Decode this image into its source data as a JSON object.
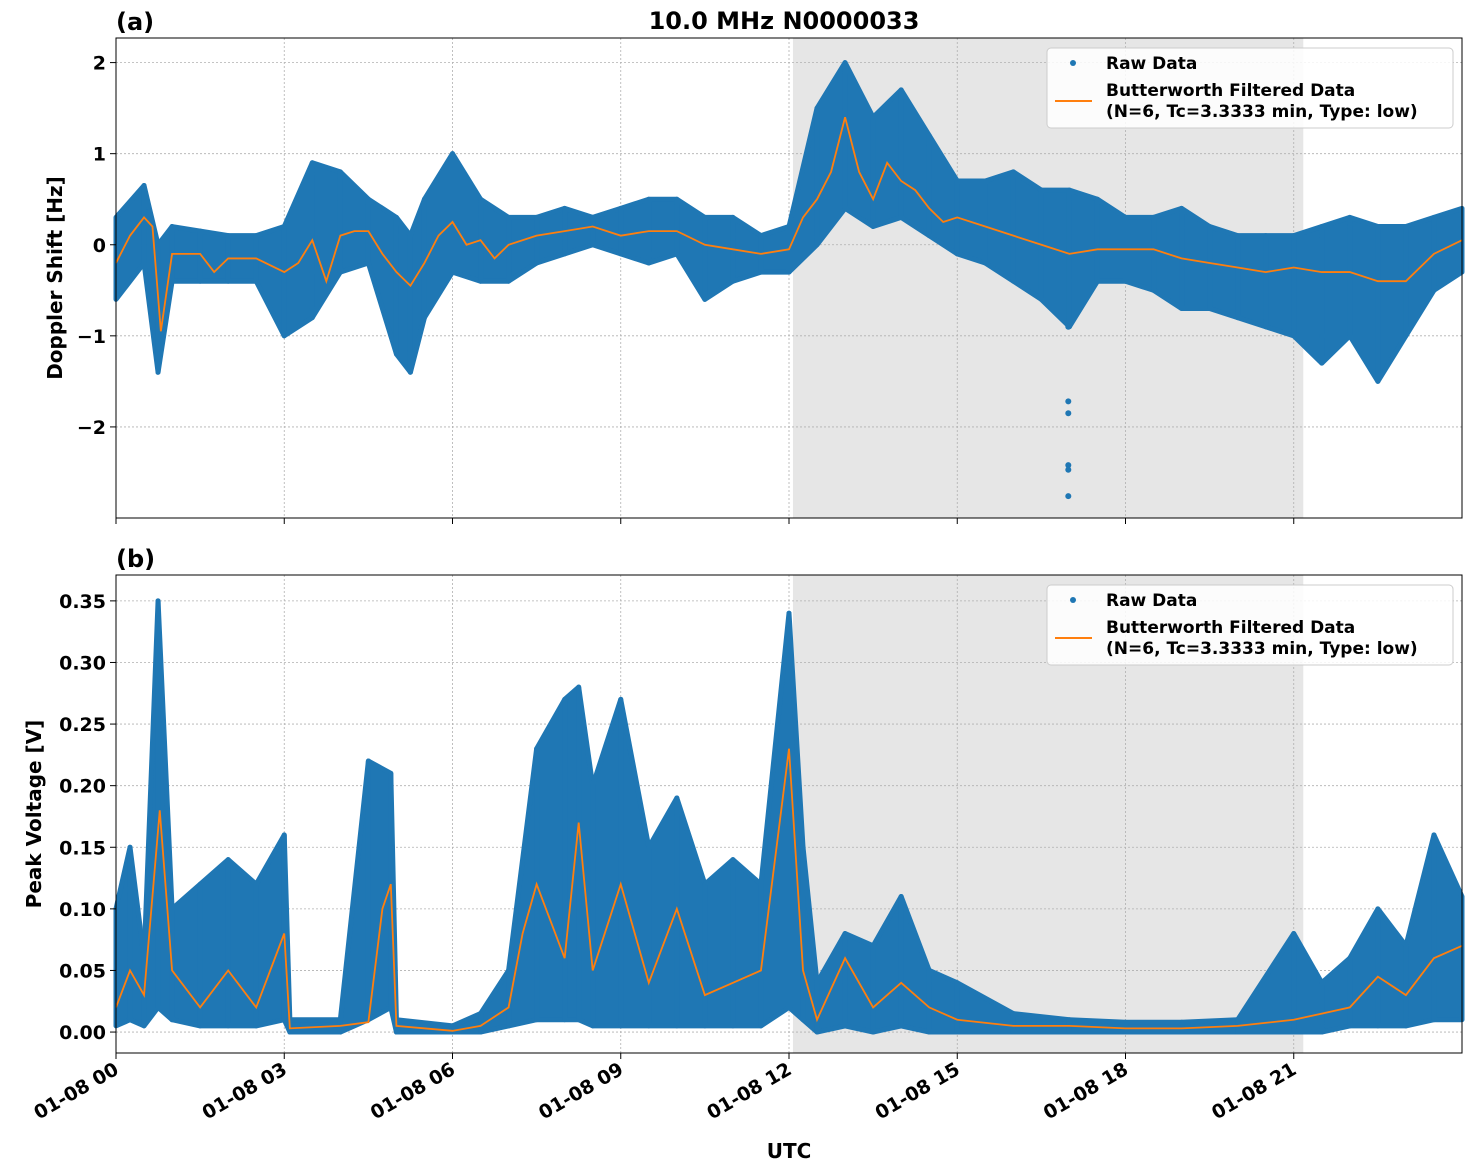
{
  "title": "10.0 MHz N0000033",
  "colors": {
    "raw": "#1f77b4",
    "filtered": "#ff7f0e",
    "shade": "#e6e6e6",
    "grid": "#b0b0b0"
  },
  "chart_data": [
    {
      "type": "scatter",
      "panel_label": "(a)",
      "ylabel": "Doppler Shift [Hz]",
      "xlabel": "",
      "ylim": [
        -3.0,
        2.27
      ],
      "xlim_hours": [
        0,
        24
      ],
      "yticks": [
        2,
        1,
        0,
        -1,
        -2
      ],
      "ytick_labels": [
        "2",
        "1",
        "0",
        "−1",
        "−2"
      ],
      "grid": true,
      "legend_position": "top-right",
      "shaded_span_hours": [
        12.07,
        21.17
      ],
      "legend": {
        "raw": "Raw Data",
        "filtered_line1": "Butterworth Filtered Data",
        "filtered_line2": "(N=6, Tc=3.3333 min, Type: low)"
      },
      "raw_envelope": [
        [
          0,
          -0.6,
          0.3
        ],
        [
          0.5,
          -0.2,
          0.65
        ],
        [
          0.75,
          -1.4,
          0.0
        ],
        [
          1,
          -0.4,
          0.2
        ],
        [
          1.5,
          -0.4,
          0.15
        ],
        [
          2,
          -0.4,
          0.1
        ],
        [
          2.5,
          -0.4,
          0.1
        ],
        [
          3,
          -1.0,
          0.2
        ],
        [
          3.5,
          -0.8,
          0.9
        ],
        [
          4,
          -0.3,
          0.8
        ],
        [
          4.5,
          -0.2,
          0.5
        ],
        [
          5,
          -1.2,
          0.3
        ],
        [
          5.25,
          -1.4,
          0.1
        ],
        [
          5.5,
          -0.8,
          0.5
        ],
        [
          6,
          -0.3,
          1.0
        ],
        [
          6.5,
          -0.4,
          0.5
        ],
        [
          7,
          -0.4,
          0.3
        ],
        [
          7.5,
          -0.2,
          0.3
        ],
        [
          8,
          -0.1,
          0.4
        ],
        [
          8.5,
          0.0,
          0.3
        ],
        [
          9,
          -0.1,
          0.4
        ],
        [
          9.5,
          -0.2,
          0.5
        ],
        [
          10,
          -0.1,
          0.5
        ],
        [
          10.5,
          -0.6,
          0.3
        ],
        [
          11,
          -0.4,
          0.3
        ],
        [
          11.5,
          -0.3,
          0.1
        ],
        [
          12,
          -0.3,
          0.2
        ],
        [
          12.5,
          0.0,
          1.5
        ],
        [
          13,
          0.4,
          2.0
        ],
        [
          13.5,
          0.2,
          1.4
        ],
        [
          14,
          0.3,
          1.7
        ],
        [
          14.5,
          0.1,
          1.2
        ],
        [
          15,
          -0.1,
          0.7
        ],
        [
          15.5,
          -0.2,
          0.7
        ],
        [
          16,
          -0.4,
          0.8
        ],
        [
          16.5,
          -0.6,
          0.6
        ],
        [
          17,
          -0.9,
          0.6
        ],
        [
          17.5,
          -0.4,
          0.5
        ],
        [
          18,
          -0.4,
          0.3
        ],
        [
          18.5,
          -0.5,
          0.3
        ],
        [
          19,
          -0.7,
          0.4
        ],
        [
          19.5,
          -0.7,
          0.2
        ],
        [
          20,
          -0.8,
          0.1
        ],
        [
          20.5,
          -0.9,
          0.1
        ],
        [
          21,
          -1.0,
          0.1
        ],
        [
          21.5,
          -1.3,
          0.2
        ],
        [
          22,
          -1.0,
          0.3
        ],
        [
          22.5,
          -1.5,
          0.2
        ],
        [
          23,
          -1.0,
          0.2
        ],
        [
          23.5,
          -0.5,
          0.3
        ],
        [
          24,
          -0.3,
          0.4
        ]
      ],
      "raw_outliers": [
        [
          16.98,
          -1.72
        ],
        [
          16.98,
          -1.85
        ],
        [
          16.98,
          -2.42
        ],
        [
          16.98,
          -2.47
        ],
        [
          16.98,
          -2.76
        ],
        [
          16.98,
          -0.9
        ]
      ],
      "filtered": [
        [
          0,
          -0.2
        ],
        [
          0.25,
          0.1
        ],
        [
          0.5,
          0.3
        ],
        [
          0.65,
          0.2
        ],
        [
          0.8,
          -0.95
        ],
        [
          1,
          -0.1
        ],
        [
          1.5,
          -0.1
        ],
        [
          1.75,
          -0.3
        ],
        [
          2,
          -0.15
        ],
        [
          2.5,
          -0.15
        ],
        [
          3,
          -0.3
        ],
        [
          3.25,
          -0.2
        ],
        [
          3.5,
          0.05
        ],
        [
          3.75,
          -0.4
        ],
        [
          4,
          0.1
        ],
        [
          4.25,
          0.15
        ],
        [
          4.5,
          0.15
        ],
        [
          4.75,
          -0.1
        ],
        [
          5,
          -0.3
        ],
        [
          5.25,
          -0.45
        ],
        [
          5.5,
          -0.2
        ],
        [
          5.75,
          0.1
        ],
        [
          6,
          0.25
        ],
        [
          6.25,
          0.0
        ],
        [
          6.5,
          0.05
        ],
        [
          6.75,
          -0.15
        ],
        [
          7,
          0.0
        ],
        [
          7.5,
          0.1
        ],
        [
          8,
          0.15
        ],
        [
          8.5,
          0.2
        ],
        [
          9,
          0.1
        ],
        [
          9.5,
          0.15
        ],
        [
          10,
          0.15
        ],
        [
          10.5,
          0.0
        ],
        [
          11,
          -0.05
        ],
        [
          11.5,
          -0.1
        ],
        [
          12,
          -0.05
        ],
        [
          12.25,
          0.3
        ],
        [
          12.5,
          0.5
        ],
        [
          12.75,
          0.8
        ],
        [
          13,
          1.4
        ],
        [
          13.25,
          0.8
        ],
        [
          13.5,
          0.5
        ],
        [
          13.75,
          0.9
        ],
        [
          14,
          0.7
        ],
        [
          14.25,
          0.6
        ],
        [
          14.5,
          0.4
        ],
        [
          14.75,
          0.25
        ],
        [
          15,
          0.3
        ],
        [
          15.5,
          0.2
        ],
        [
          16,
          0.1
        ],
        [
          16.5,
          0.0
        ],
        [
          17,
          -0.1
        ],
        [
          17.5,
          -0.05
        ],
        [
          18,
          -0.05
        ],
        [
          18.5,
          -0.05
        ],
        [
          19,
          -0.15
        ],
        [
          19.5,
          -0.2
        ],
        [
          20,
          -0.25
        ],
        [
          20.5,
          -0.3
        ],
        [
          21,
          -0.25
        ],
        [
          21.5,
          -0.3
        ],
        [
          22,
          -0.3
        ],
        [
          22.5,
          -0.4
        ],
        [
          23,
          -0.4
        ],
        [
          23.5,
          -0.1
        ],
        [
          24,
          0.05
        ]
      ]
    },
    {
      "type": "scatter",
      "panel_label": "(b)",
      "ylabel": "Peak Voltage [V]",
      "xlabel": "UTC",
      "ylim": [
        -0.017,
        0.371
      ],
      "xlim_hours": [
        0,
        24
      ],
      "yticks": [
        0.35,
        0.3,
        0.25,
        0.2,
        0.15,
        0.1,
        0.05,
        0.0
      ],
      "ytick_labels": [
        "0.35",
        "0.30",
        "0.25",
        "0.20",
        "0.15",
        "0.10",
        "0.05",
        "0.00"
      ],
      "xticks_hours": [
        0,
        3,
        6,
        9,
        12,
        15,
        18,
        21
      ],
      "xtick_labels": [
        "01-08 00",
        "01-08 03",
        "01-08 06",
        "01-08 09",
        "01-08 12",
        "01-08 15",
        "01-08 18",
        "01-08 21"
      ],
      "grid": true,
      "legend_position": "top-right",
      "shaded_span_hours": [
        12.07,
        21.17
      ],
      "legend": {
        "raw": "Raw Data",
        "filtered_line1": "Butterworth Filtered Data",
        "filtered_line2": "(N=6, Tc=3.3333 min, Type: low)"
      },
      "raw_envelope": [
        [
          0,
          0.005,
          0.1
        ],
        [
          0.25,
          0.01,
          0.15
        ],
        [
          0.5,
          0.005,
          0.06
        ],
        [
          0.75,
          0.02,
          0.35
        ],
        [
          1,
          0.01,
          0.1
        ],
        [
          1.5,
          0.005,
          0.12
        ],
        [
          2,
          0.005,
          0.14
        ],
        [
          2.5,
          0.005,
          0.12
        ],
        [
          3,
          0.01,
          0.16
        ],
        [
          3.1,
          0.0,
          0.01
        ],
        [
          4,
          0.0,
          0.01
        ],
        [
          4.5,
          0.01,
          0.22
        ],
        [
          4.9,
          0.02,
          0.21
        ],
        [
          5,
          0.0,
          0.01
        ],
        [
          6,
          0.0,
          0.005
        ],
        [
          6.5,
          0.0,
          0.015
        ],
        [
          7,
          0.005,
          0.05
        ],
        [
          7.5,
          0.01,
          0.23
        ],
        [
          8,
          0.01,
          0.27
        ],
        [
          8.25,
          0.01,
          0.28
        ],
        [
          8.5,
          0.005,
          0.2
        ],
        [
          9,
          0.005,
          0.27
        ],
        [
          9.5,
          0.005,
          0.15
        ],
        [
          10,
          0.005,
          0.19
        ],
        [
          10.5,
          0.005,
          0.12
        ],
        [
          11,
          0.005,
          0.14
        ],
        [
          11.5,
          0.005,
          0.12
        ],
        [
          12,
          0.02,
          0.34
        ],
        [
          12.25,
          0.01,
          0.15
        ],
        [
          12.5,
          0.0,
          0.04
        ],
        [
          13,
          0.005,
          0.08
        ],
        [
          13.5,
          0.0,
          0.07
        ],
        [
          14,
          0.005,
          0.11
        ],
        [
          14.5,
          0.0,
          0.05
        ],
        [
          15,
          0.0,
          0.04
        ],
        [
          16,
          0.0,
          0.015
        ],
        [
          17,
          0.0,
          0.01
        ],
        [
          18,
          0.0,
          0.008
        ],
        [
          19,
          0.0,
          0.008
        ],
        [
          20,
          0.0,
          0.01
        ],
        [
          21,
          0.0,
          0.08
        ],
        [
          21.5,
          0.0,
          0.04
        ],
        [
          22,
          0.005,
          0.06
        ],
        [
          22.5,
          0.005,
          0.1
        ],
        [
          23,
          0.005,
          0.07
        ],
        [
          23.5,
          0.01,
          0.16
        ],
        [
          24,
          0.01,
          0.11
        ]
      ],
      "raw_outliers": [],
      "filtered": [
        [
          0,
          0.02
        ],
        [
          0.25,
          0.05
        ],
        [
          0.5,
          0.03
        ],
        [
          0.78,
          0.18
        ],
        [
          1,
          0.05
        ],
        [
          1.5,
          0.02
        ],
        [
          2,
          0.05
        ],
        [
          2.5,
          0.02
        ],
        [
          3,
          0.08
        ],
        [
          3.1,
          0.003
        ],
        [
          4,
          0.005
        ],
        [
          4.5,
          0.008
        ],
        [
          4.75,
          0.1
        ],
        [
          4.9,
          0.12
        ],
        [
          5,
          0.005
        ],
        [
          6,
          0.001
        ],
        [
          6.5,
          0.005
        ],
        [
          7,
          0.02
        ],
        [
          7.25,
          0.08
        ],
        [
          7.5,
          0.12
        ],
        [
          8,
          0.06
        ],
        [
          8.25,
          0.17
        ],
        [
          8.5,
          0.05
        ],
        [
          9,
          0.12
        ],
        [
          9.5,
          0.04
        ],
        [
          10,
          0.1
        ],
        [
          10.5,
          0.03
        ],
        [
          11,
          0.04
        ],
        [
          11.5,
          0.05
        ],
        [
          12,
          0.23
        ],
        [
          12.25,
          0.05
        ],
        [
          12.5,
          0.01
        ],
        [
          13,
          0.06
        ],
        [
          13.5,
          0.02
        ],
        [
          14,
          0.04
        ],
        [
          14.5,
          0.02
        ],
        [
          15,
          0.01
        ],
        [
          16,
          0.005
        ],
        [
          17,
          0.005
        ],
        [
          18,
          0.003
        ],
        [
          19,
          0.003
        ],
        [
          20,
          0.005
        ],
        [
          21,
          0.01
        ],
        [
          21.5,
          0.015
        ],
        [
          22,
          0.02
        ],
        [
          22.5,
          0.045
        ],
        [
          23,
          0.03
        ],
        [
          23.5,
          0.06
        ],
        [
          24,
          0.07
        ]
      ]
    }
  ]
}
